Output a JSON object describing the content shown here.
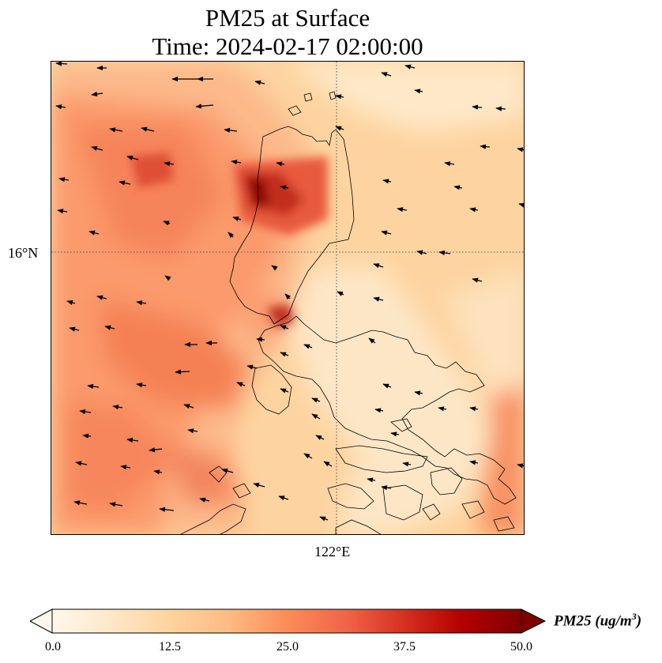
{
  "title": {
    "line1": "PM25 at Surface",
    "line2": "Time: 2024-02-17 02:00:00"
  },
  "map": {
    "variable": "PM25",
    "gridlines": {
      "latitude": "16°N",
      "longitude": "122°E",
      "style": "dotted"
    },
    "coastline_color": "#000000",
    "wind_vectors": true
  },
  "colorbar": {
    "label_main": "PM25 (ug/m",
    "label_sup": "3",
    "label_close": ")",
    "ticks": [
      "0.0",
      "12.5",
      "25.0",
      "37.5",
      "50.0"
    ],
    "min": 0.0,
    "max": 50.0,
    "extend": "both",
    "colormap": "OrRd",
    "colors": [
      "#fff7ec",
      "#fee8c8",
      "#fdd49e",
      "#fdbb84",
      "#fc8d59",
      "#ef6548",
      "#d7301f",
      "#b30000",
      "#7f0000"
    ]
  }
}
